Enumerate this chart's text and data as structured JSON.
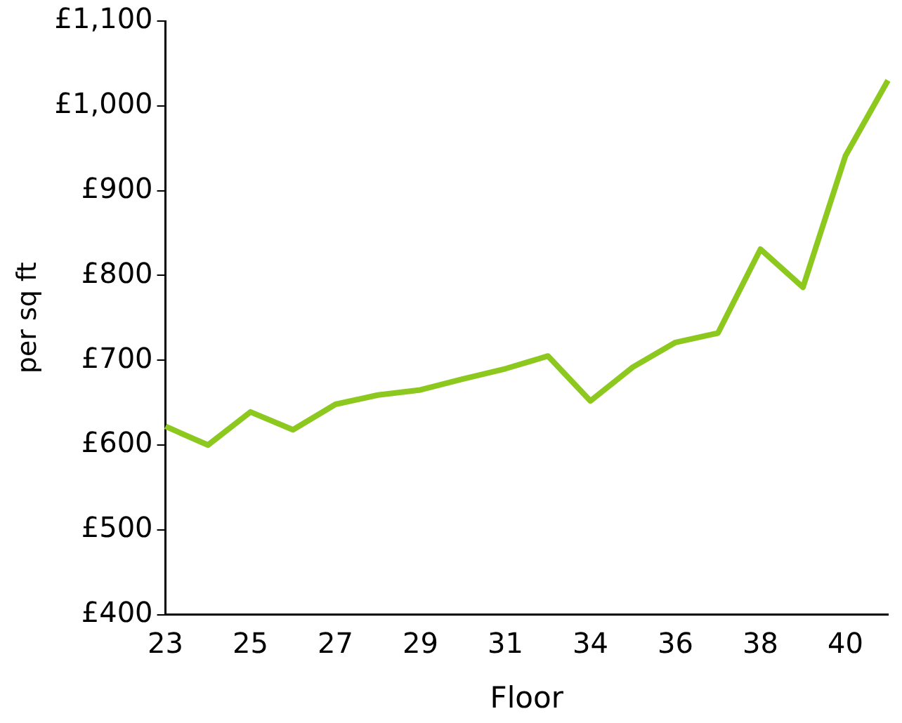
{
  "chart_data": {
    "type": "line",
    "xlabel": "Floor",
    "ylabel": "per sq ft",
    "categories": [
      "23",
      null,
      "25",
      null,
      "27",
      null,
      "29",
      null,
      "31",
      null,
      "34",
      null,
      "36",
      null,
      "38",
      null,
      "40",
      null
    ],
    "series": [
      {
        "color": "#8cc81e",
        "values": [
          622,
          600,
          639,
          618,
          648,
          659,
          665,
          678,
          690,
          705,
          652,
          692,
          721,
          732,
          831,
          786,
          941,
          1030
        ]
      }
    ],
    "ylim": [
      400,
      1100
    ],
    "yticks": [
      {
        "value": 400,
        "label": "£400"
      },
      {
        "value": 500,
        "label": "£500"
      },
      {
        "value": 600,
        "label": "£600"
      },
      {
        "value": 700,
        "label": "£700"
      },
      {
        "value": 800,
        "label": "£800"
      },
      {
        "value": 900,
        "label": "£900"
      },
      {
        "value": 1000,
        "label": "£1,000"
      },
      {
        "value": 1100,
        "label": "£1,100"
      }
    ],
    "grid": false,
    "legend": false,
    "marker": "none",
    "line_style": "solid"
  }
}
